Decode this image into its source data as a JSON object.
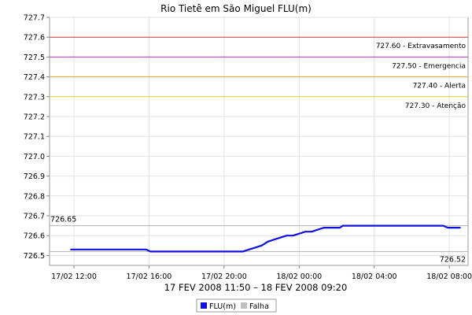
{
  "chart_data": {
    "type": "line",
    "title": "Rio Tietê em São Miguel FLU(m)",
    "subtitle": "17 FEV 2008 11:50 – 18 FEV 2008 09:20",
    "ylim": [
      726.45,
      727.7
    ],
    "y_ticks": [
      "726.5",
      "726.6",
      "726.7",
      "726.8",
      "726.9",
      "727.0",
      "727.1",
      "727.2",
      "727.3",
      "727.4",
      "727.5",
      "727.6",
      "727.7"
    ],
    "x_range_hours": [
      10.7,
      33.0
    ],
    "x_ticks": [
      {
        "label": "17/02 12:00",
        "hour": 12
      },
      {
        "label": "17/02 16:00",
        "hour": 16
      },
      {
        "label": "17/02 20:00",
        "hour": 20
      },
      {
        "label": "18/02 00:00",
        "hour": 24
      },
      {
        "label": "18/02 04:00",
        "hour": 28
      },
      {
        "label": "18/02 08:00",
        "hour": 32
      }
    ],
    "thresholds": [
      {
        "value": 727.6,
        "label": "727.60 - Extravasamento",
        "color": "#d03a3a"
      },
      {
        "value": 727.5,
        "label": "727.50 - Emergencia",
        "color": "#b03ab8"
      },
      {
        "value": 727.4,
        "label": "727.40 - Alerta",
        "color": "#f0a030"
      },
      {
        "value": 727.3,
        "label": "727.30 - Atenção",
        "color": "#d8d830"
      }
    ],
    "reference_lines": [
      {
        "value": 726.65,
        "label": "726.65",
        "side": "left"
      },
      {
        "value": 726.52,
        "label": "726.52",
        "side": "right"
      }
    ],
    "series": [
      {
        "name": "FLU(m)",
        "color": "#1010e0",
        "points": [
          [
            11.83,
            726.53
          ],
          [
            15.83,
            726.53
          ],
          [
            16.08,
            726.52
          ],
          [
            21.0,
            726.52
          ],
          [
            21.33,
            726.53
          ],
          [
            21.67,
            726.54
          ],
          [
            22.0,
            726.55
          ],
          [
            22.33,
            726.57
          ],
          [
            22.67,
            726.58
          ],
          [
            23.0,
            726.59
          ],
          [
            23.33,
            726.6
          ],
          [
            23.67,
            726.6
          ],
          [
            24.0,
            726.61
          ],
          [
            24.33,
            726.62
          ],
          [
            24.67,
            726.62
          ],
          [
            25.0,
            726.63
          ],
          [
            25.33,
            726.64
          ],
          [
            26.17,
            726.64
          ],
          [
            26.33,
            726.65
          ],
          [
            31.67,
            726.65
          ],
          [
            31.92,
            726.64
          ],
          [
            32.58,
            726.64
          ]
        ]
      }
    ],
    "legend": [
      {
        "name": "FLU(m)",
        "color": "#1010e0"
      },
      {
        "name": "Falha",
        "color": "#c0c0c0"
      }
    ],
    "legend_position": "bottom",
    "grid": true
  }
}
